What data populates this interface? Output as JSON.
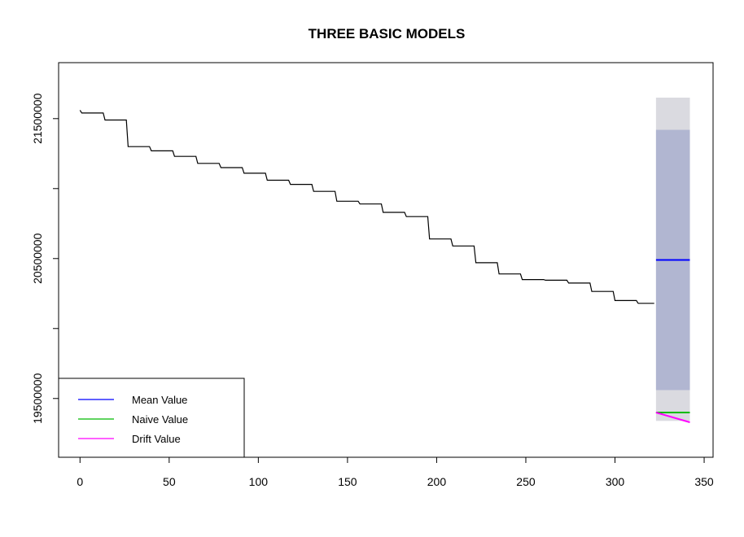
{
  "chart_data": {
    "type": "line",
    "title": "THREE BASIC MODELS",
    "xlabel": "",
    "ylabel": "",
    "xlim": [
      -12,
      355
    ],
    "ylim": [
      19080000,
      21900000
    ],
    "x_ticks": [
      0,
      50,
      100,
      150,
      200,
      250,
      300,
      350
    ],
    "y_ticks": [
      19500000,
      20000000,
      20500000,
      21000000,
      21500000
    ],
    "y_tick_labels": [
      "19500000",
      "",
      "20500000",
      "",
      "21500000"
    ],
    "legend_position": "bottom-left",
    "grid": false,
    "series": [
      {
        "kind": "observed",
        "color": "#000000",
        "x": [
          0,
          1,
          13,
          14,
          26,
          27,
          39,
          40,
          52,
          53,
          65,
          66,
          78,
          79,
          91,
          92,
          104,
          105,
          117,
          118,
          130,
          131,
          143,
          144,
          156,
          157,
          169,
          170,
          182,
          183,
          195,
          196,
          208,
          209,
          221,
          222,
          234,
          235,
          247,
          248,
          260,
          261,
          273,
          274,
          286,
          287,
          299,
          300,
          312,
          313,
          322
        ],
        "y": [
          21560000,
          21540000,
          21540000,
          21490000,
          21490000,
          21300000,
          21300000,
          21270000,
          21270000,
          21230000,
          21230000,
          21180000,
          21180000,
          21150000,
          21150000,
          21110000,
          21110000,
          21060000,
          21060000,
          21030000,
          21030000,
          20980000,
          20980000,
          20910000,
          20910000,
          20890000,
          20890000,
          20830000,
          20830000,
          20800000,
          20800000,
          20640000,
          20640000,
          20590000,
          20590000,
          20470000,
          20470000,
          20390000,
          20390000,
          20350000,
          20350000,
          20345000,
          20345000,
          20325000,
          20325000,
          20265000,
          20265000,
          20200000,
          20200000,
          20180000,
          20180000
        ]
      },
      {
        "name": "Mean Value",
        "kind": "mean-forecast",
        "color": "#0000ff",
        "x": [
          323,
          342
        ],
        "y": [
          20490000,
          20490000
        ],
        "bands": [
          {
            "level": "95",
            "color": "#dadae0",
            "lower": 19340000,
            "upper": 21650000
          },
          {
            "level": "80",
            "color": "#b1b6d1",
            "lower": 19560000,
            "upper": 21420000
          }
        ]
      },
      {
        "name": "Naive Value",
        "kind": "naive-forecast",
        "color": "#00bb00",
        "x": [
          323,
          342
        ],
        "y": [
          19400000,
          19400000
        ]
      },
      {
        "name": "Drift Value",
        "kind": "drift-forecast",
        "color": "#ff00ff",
        "x": [
          323,
          342
        ],
        "y": [
          19400000,
          19330000
        ]
      }
    ]
  }
}
